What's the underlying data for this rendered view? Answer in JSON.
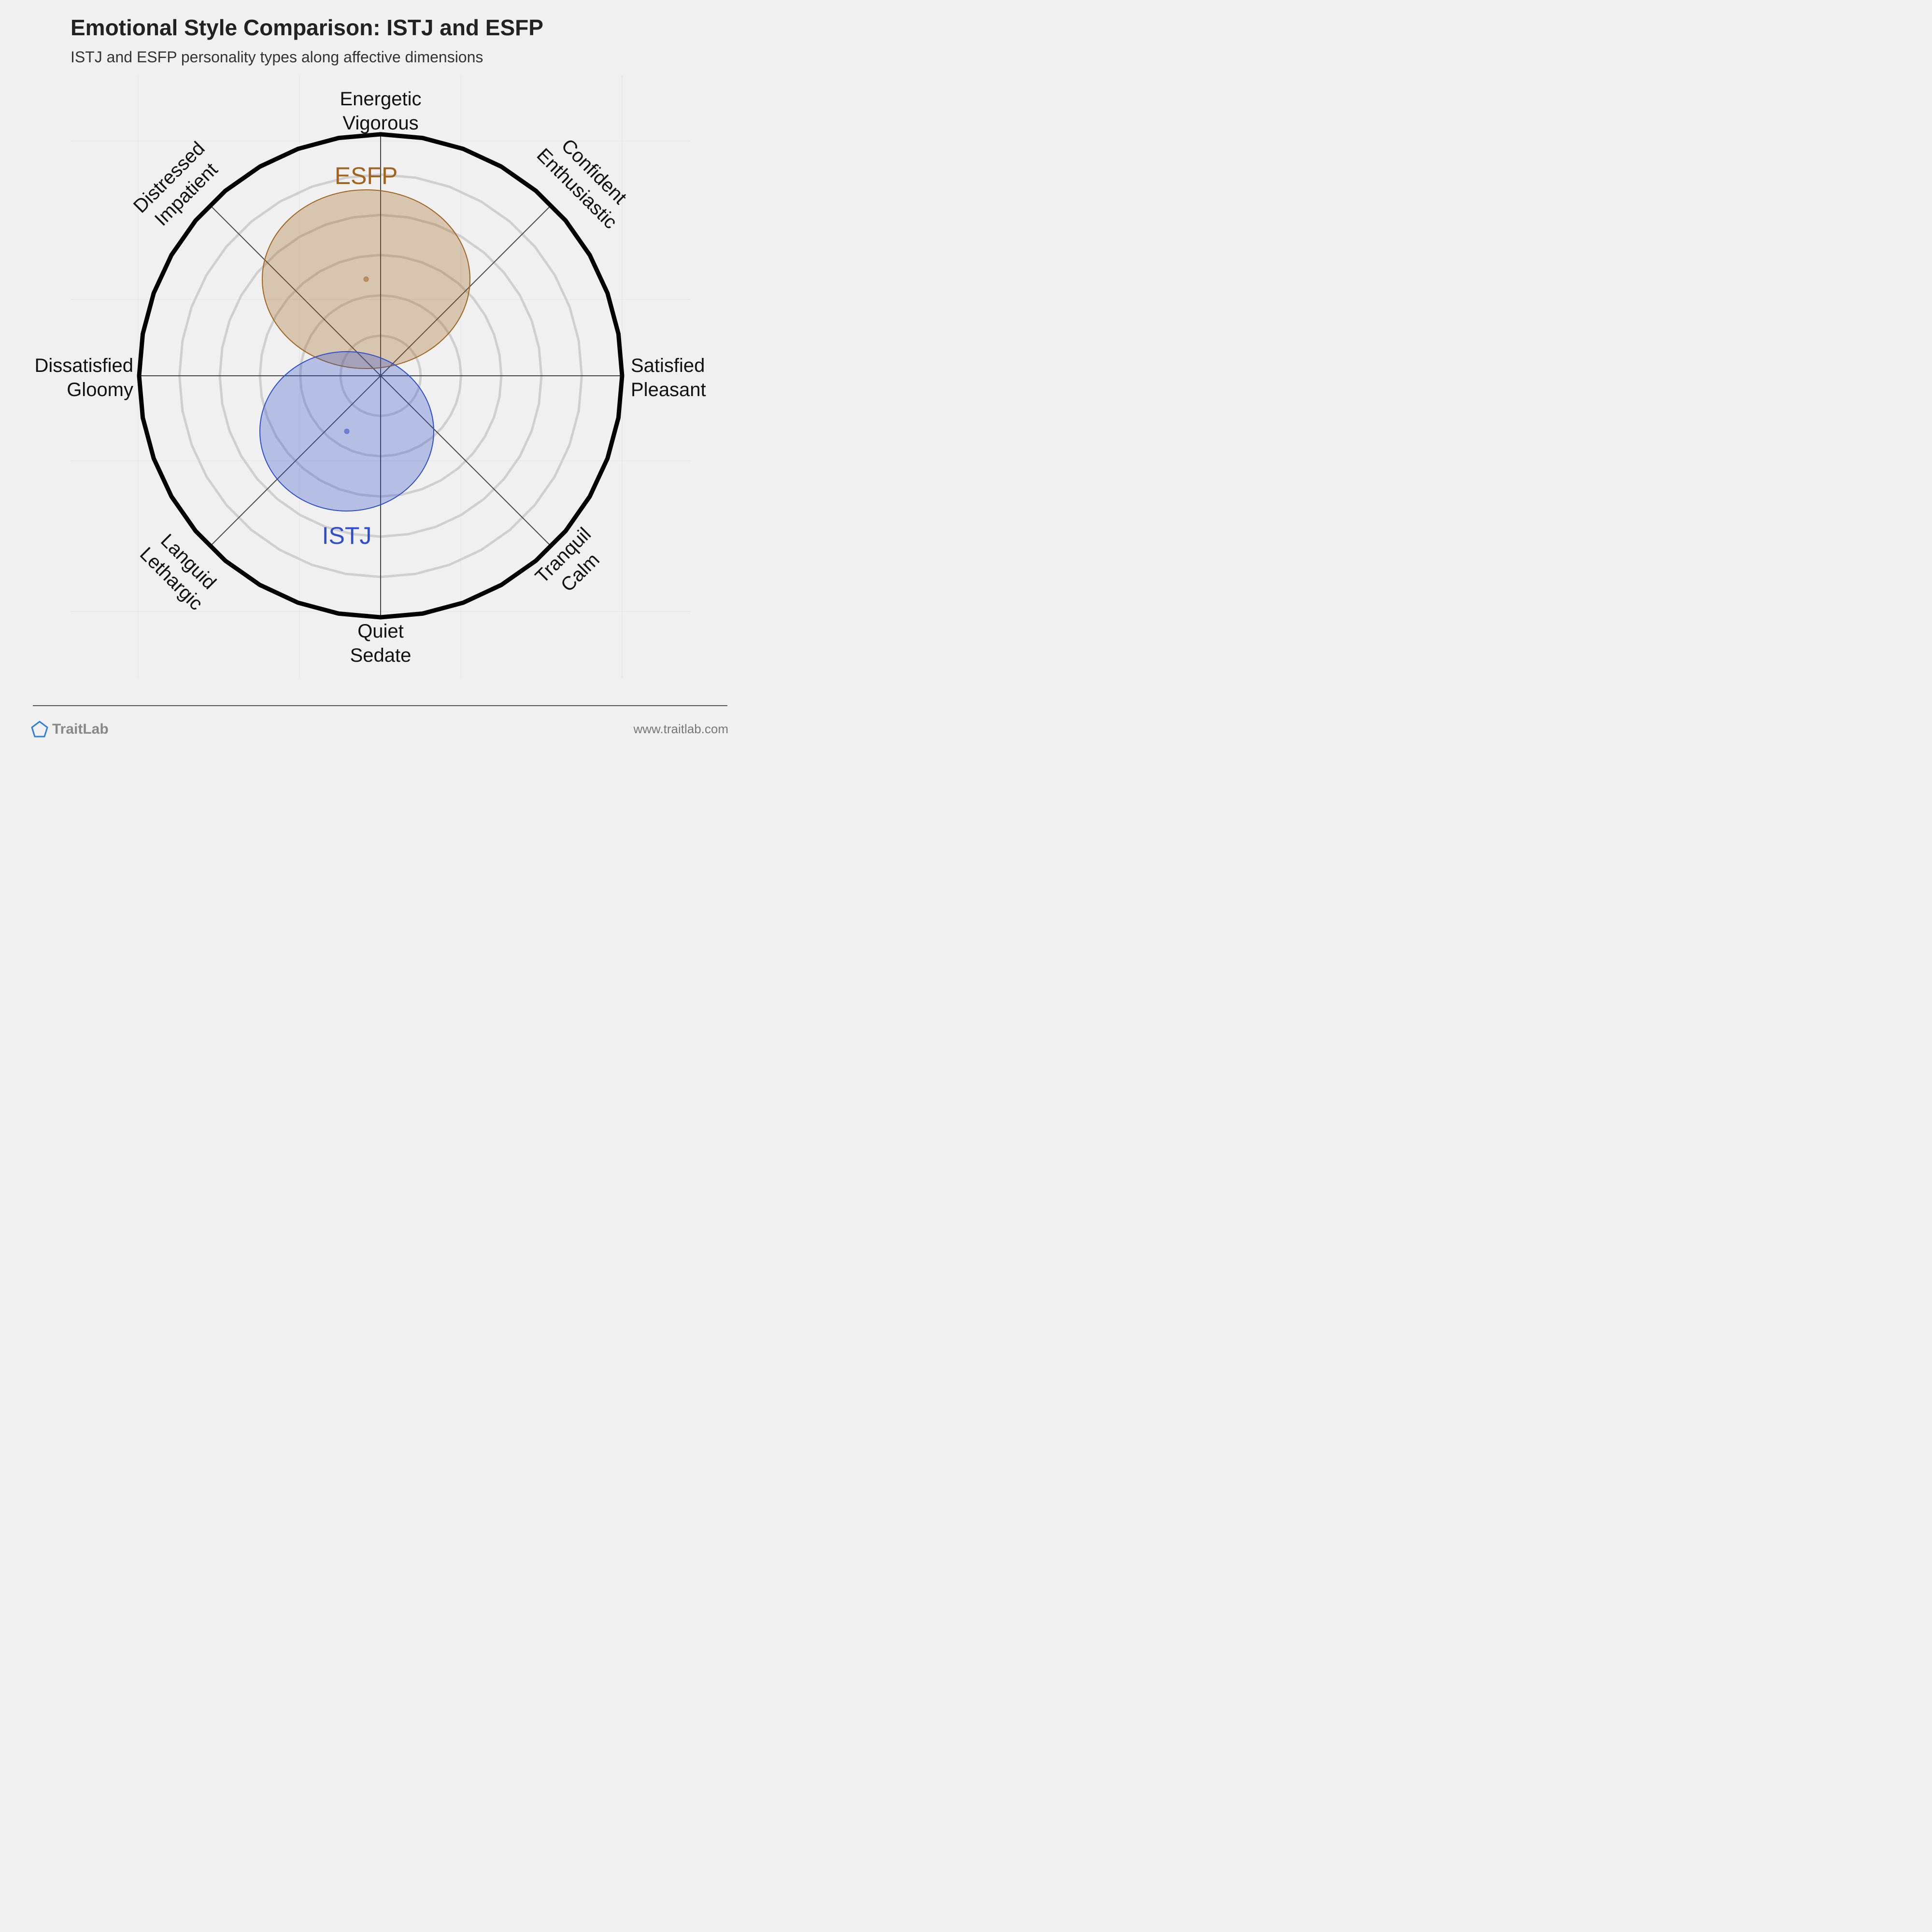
{
  "header": {
    "title": "Emotional Style Comparison: ISTJ and ESFP",
    "subtitle": "ISTJ and ESFP personality types along affective dimensions"
  },
  "axis_labels": {
    "n": [
      "Energetic",
      "Vigorous"
    ],
    "ne": [
      "Confident",
      "Enthusiastic"
    ],
    "e": [
      "Satisfied",
      "Pleasant"
    ],
    "se": [
      "Tranquil",
      "Calm"
    ],
    "s": [
      "Quiet",
      "Sedate"
    ],
    "sw": [
      "Languid",
      "Lethargic"
    ],
    "w": [
      "Dissatisfied",
      "Gloomy"
    ],
    "nw": [
      "Distressed",
      "Impatient"
    ]
  },
  "chart_data": {
    "type": "scatter",
    "description_axes": {
      "x": "Dissatisfied/Gloomy (-1) to Satisfied/Pleasant (+1)",
      "y": "Quiet/Sedate (-1) to Energetic/Vigorous (+1)"
    },
    "xlim": [
      -1,
      1
    ],
    "ylim": [
      -1,
      1
    ],
    "rings": [
      0.166,
      0.333,
      0.5,
      0.666,
      0.833
    ],
    "grid": true,
    "series": [
      {
        "name": "ESFP",
        "x": -0.06,
        "y": 0.4,
        "rx": 0.43,
        "ry": 0.37,
        "color": "#a0641e"
      },
      {
        "name": "ISTJ",
        "x": -0.14,
        "y": -0.23,
        "rx": 0.36,
        "ry": 0.33,
        "color": "#2f4ecb"
      }
    ]
  },
  "footer": {
    "brand": "TraitLab",
    "website": "www.traitlab.com"
  },
  "colors": {
    "background": "#f0f0f0",
    "ring": "#cfcfcf",
    "outer_ring": "#000000",
    "esfp_fill": "#a0641e",
    "istj_fill": "#2f4ecb"
  }
}
